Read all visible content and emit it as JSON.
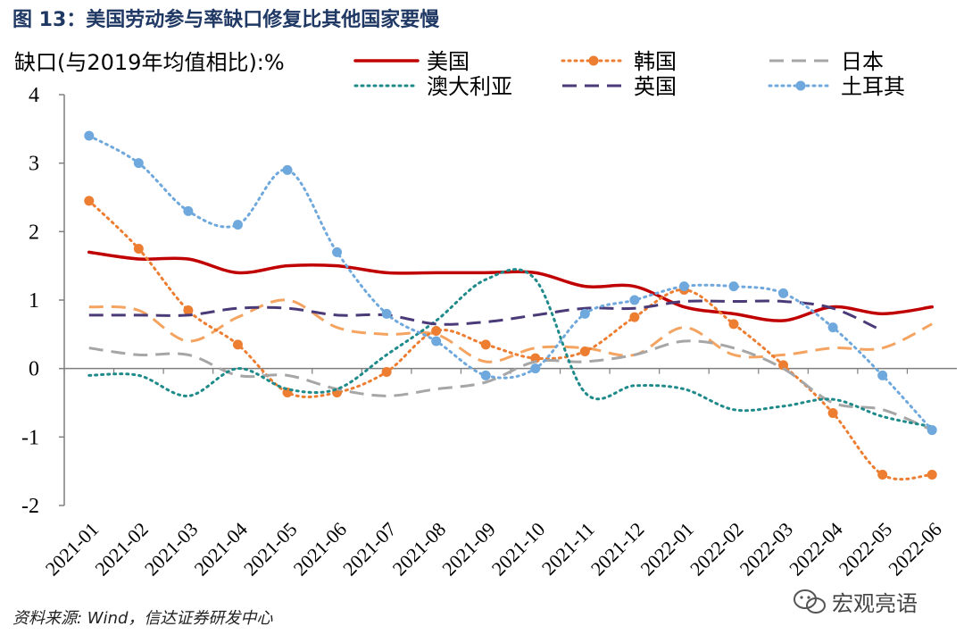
{
  "figure": {
    "title": "图 13：美国劳动参与率缺口修复比其他国家要慢",
    "source": "资料来源: Wind，信达证券研发中心",
    "watermark": "宏观亮语"
  },
  "chart_data": {
    "type": "line",
    "title": "",
    "ylabel": "缺口(与2019年均值相比):%",
    "xlabel": "",
    "ylim": [
      -2,
      4
    ],
    "yticks": [
      -2,
      -1,
      0,
      1,
      2,
      3,
      4
    ],
    "grid": false,
    "legend_position": "top",
    "categories": [
      "2021-01",
      "2021-02",
      "2021-03",
      "2021-04",
      "2021-05",
      "2021-06",
      "2021-07",
      "2021-08",
      "2021-09",
      "2021-10",
      "2021-11",
      "2021-12",
      "2022-01",
      "2022-02",
      "2022-03",
      "2022-04",
      "2022-05",
      "2022-06"
    ],
    "series": [
      {
        "name": "美国",
        "color": "#c00000",
        "style": "solid",
        "values": [
          1.7,
          1.6,
          1.6,
          1.4,
          1.5,
          1.5,
          1.4,
          1.4,
          1.4,
          1.4,
          1.2,
          1.2,
          0.9,
          0.8,
          0.7,
          0.9,
          0.8,
          0.9
        ]
      },
      {
        "name": "韩国",
        "color": "#ed7d31",
        "style": "dotted-markers",
        "values": [
          2.45,
          1.75,
          0.85,
          0.35,
          -0.35,
          -0.35,
          -0.05,
          0.55,
          0.35,
          0.15,
          0.25,
          0.75,
          1.15,
          0.65,
          0.05,
          -0.65,
          -1.55,
          -1.55
        ]
      },
      {
        "name": "日本",
        "color": "#a6a6a6",
        "style": "dashed",
        "values": [
          0.3,
          0.2,
          0.2,
          -0.1,
          -0.1,
          -0.3,
          -0.4,
          -0.3,
          -0.2,
          0.1,
          0.1,
          0.2,
          0.4,
          0.3,
          0.0,
          -0.5,
          -0.6,
          -0.9
        ]
      },
      {
        "name": "澳大利亚",
        "color": "#1f8a8a",
        "style": "dotted",
        "values": [
          -0.1,
          -0.1,
          -0.4,
          0.0,
          -0.3,
          -0.3,
          0.2,
          0.7,
          1.3,
          1.3,
          -0.35,
          -0.25,
          -0.3,
          -0.6,
          -0.55,
          -0.45,
          -0.7,
          -0.85
        ]
      },
      {
        "name": "英国",
        "color": "#4b3a78",
        "style": "dashed",
        "values": [
          0.78,
          0.78,
          0.78,
          0.88,
          0.88,
          0.78,
          0.78,
          0.65,
          0.68,
          0.78,
          0.88,
          0.88,
          0.98,
          0.98,
          0.98,
          0.88,
          0.55,
          null
        ]
      },
      {
        "name": "土耳其",
        "color": "#6fa8dc",
        "style": "dotted-markers",
        "values": [
          3.4,
          3.0,
          2.3,
          2.1,
          2.9,
          1.7,
          0.8,
          0.4,
          -0.1,
          0.0,
          0.8,
          1.0,
          1.2,
          1.2,
          1.1,
          0.6,
          -0.1,
          -0.9
        ]
      }
    ],
    "extra_dashed_lines": [
      {
        "color": "#f4a460",
        "style": "dashed",
        "values": [
          0.9,
          0.85,
          0.4,
          0.75,
          1.0,
          0.6,
          0.5,
          0.5,
          0.1,
          0.3,
          0.3,
          0.2,
          0.6,
          0.2,
          0.2,
          0.3,
          0.3,
          0.65
        ]
      }
    ]
  }
}
